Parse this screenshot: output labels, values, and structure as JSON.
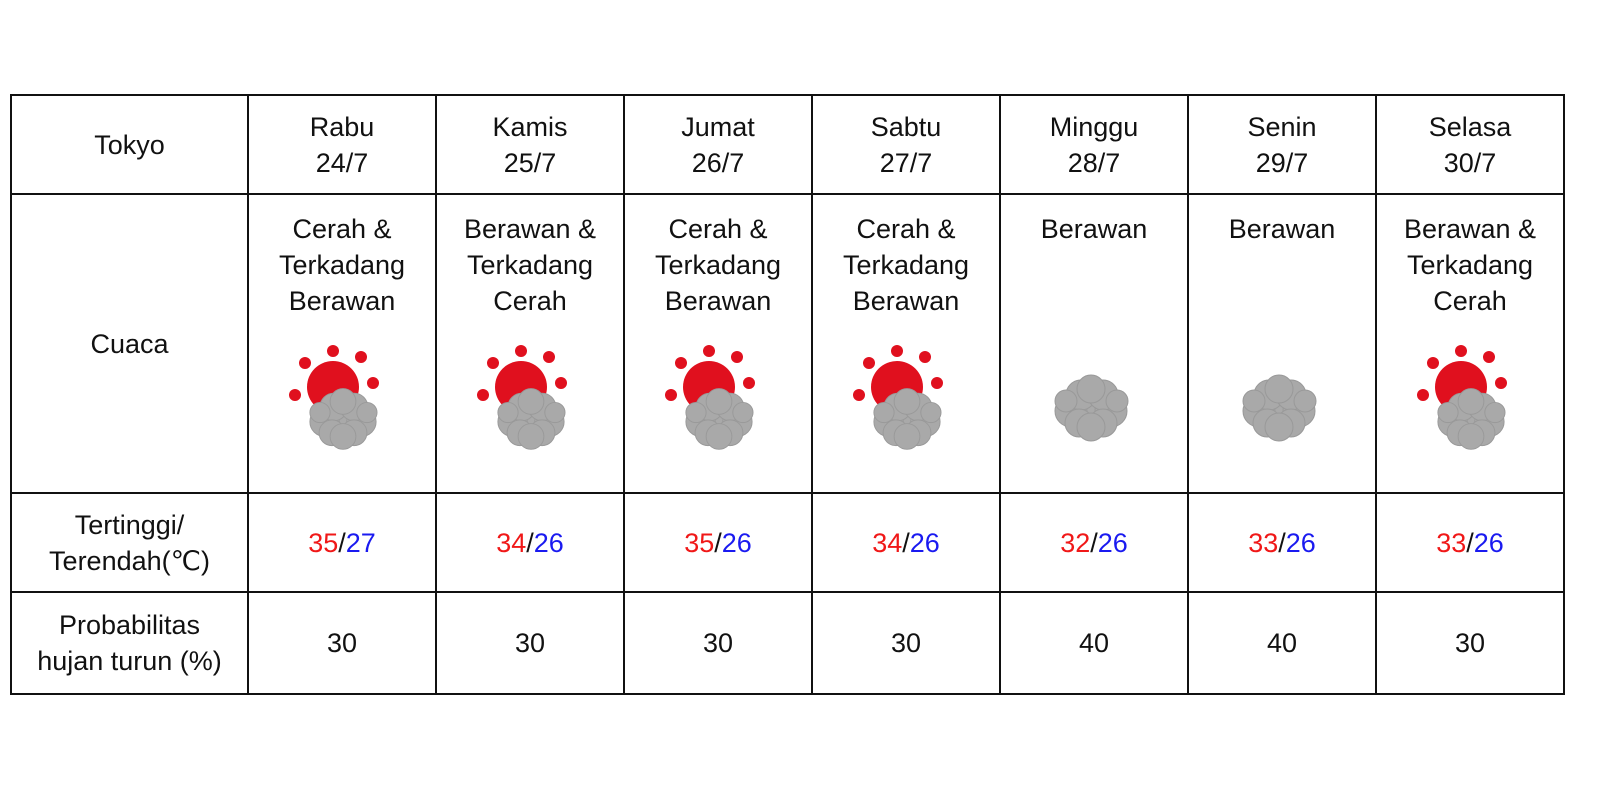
{
  "header": {
    "location": "Tokyo"
  },
  "row_labels": {
    "weather": "Cuaca",
    "temperature": "Tertinggi/\nTerendah(℃)",
    "rain": "Probabilitas\nhujan turun (%)"
  },
  "temp_separator": "/",
  "days": [
    {
      "day": "Rabu",
      "date": "24/7",
      "weather": "Cerah & Terkadang Berawan",
      "icon": "sun-cloud",
      "high": 35,
      "low": 27,
      "rain": 30
    },
    {
      "day": "Kamis",
      "date": "25/7",
      "weather": "Berawan & Terkadang Cerah",
      "icon": "sun-cloud",
      "high": 34,
      "low": 26,
      "rain": 30
    },
    {
      "day": "Jumat",
      "date": "26/7",
      "weather": "Cerah & Terkadang Berawan",
      "icon": "sun-cloud",
      "high": 35,
      "low": 26,
      "rain": 30
    },
    {
      "day": "Sabtu",
      "date": "27/7",
      "weather": "Cerah & Terkadang Berawan",
      "icon": "sun-cloud",
      "high": 34,
      "low": 26,
      "rain": 30
    },
    {
      "day": "Minggu",
      "date": "28/7",
      "weather": "Berawan",
      "icon": "cloud",
      "high": 32,
      "low": 26,
      "rain": 40
    },
    {
      "day": "Senin",
      "date": "29/7",
      "weather": "Berawan",
      "icon": "cloud",
      "high": 33,
      "low": 26,
      "rain": 40
    },
    {
      "day": "Selasa",
      "date": "30/7",
      "weather": "Berawan & Terkadang Cerah",
      "icon": "sun-cloud",
      "high": 33,
      "low": 26,
      "rain": 30
    }
  ]
}
